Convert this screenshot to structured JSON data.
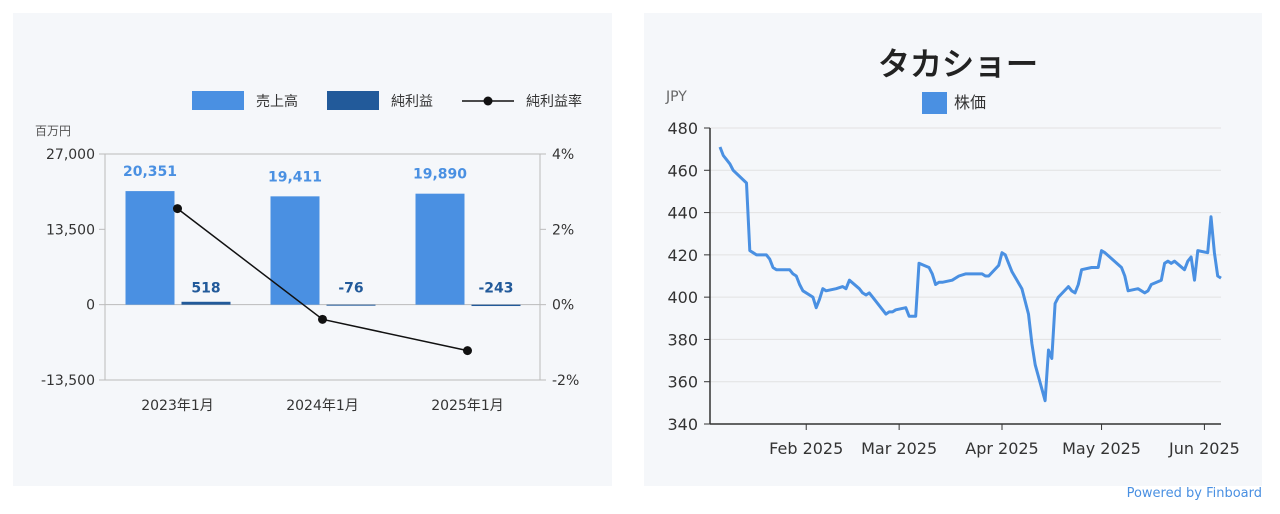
{
  "colors": {
    "revenue": "#4a90e2",
    "net_income": "#225a9a",
    "margin_line": "#111111",
    "stock_line": "#4a90e2",
    "axis": "#bbbbbb",
    "grid": "#e2e2e2"
  },
  "powered_by": "Powered by Finboard",
  "chart_data": [
    {
      "type": "bar",
      "unit_label": "百万円",
      "categories": [
        "2023年1月",
        "2024年1月",
        "2025年1月"
      ],
      "ylim": [
        -13500,
        27000
      ],
      "yticks": [
        -13500,
        0,
        13500,
        27000
      ],
      "ytick_labels": [
        "-13,500",
        "0",
        "13,500",
        "27,000"
      ],
      "y2lim": [
        -2,
        4
      ],
      "y2ticks": [
        -2,
        0,
        2,
        4
      ],
      "y2tick_labels": [
        "-2%",
        "0%",
        "2%",
        "4%"
      ],
      "legend_position": "top-right",
      "series": [
        {
          "name": "売上高",
          "kind": "bar",
          "values": [
            20351,
            19411,
            19890
          ],
          "labels": [
            "20,351",
            "19,411",
            "19,890"
          ]
        },
        {
          "name": "純利益",
          "kind": "bar",
          "values": [
            518,
            -76,
            -243
          ],
          "labels": [
            "518",
            "-76",
            "-243"
          ]
        },
        {
          "name": "純利益率",
          "kind": "line",
          "axis": "right",
          "values": [
            2.55,
            -0.39,
            -1.22
          ]
        }
      ]
    },
    {
      "type": "line",
      "title": "タカショー",
      "ylabel": "JPY",
      "ylim": [
        340,
        480
      ],
      "yticks": [
        340,
        360,
        380,
        400,
        420,
        440,
        460,
        480
      ],
      "xlim": [
        "2025-01-03",
        "2025-06-06"
      ],
      "xtick_labels": [
        "Feb 2025",
        "Mar 2025",
        "Apr 2025",
        "May 2025",
        "Jun 2025"
      ],
      "xtick_dates": [
        "2025-02-01",
        "2025-03-01",
        "2025-04-01",
        "2025-05-01",
        "2025-06-01"
      ],
      "legend_position": "top-center",
      "series": [
        {
          "name": "株価",
          "x": [
            "2025-01-06",
            "2025-01-07",
            "2025-01-08",
            "2025-01-09",
            "2025-01-10",
            "2025-01-14",
            "2025-01-15",
            "2025-01-16",
            "2025-01-17",
            "2025-01-20",
            "2025-01-21",
            "2025-01-22",
            "2025-01-23",
            "2025-01-24",
            "2025-01-27",
            "2025-01-28",
            "2025-01-29",
            "2025-01-30",
            "2025-01-31",
            "2025-02-03",
            "2025-02-04",
            "2025-02-05",
            "2025-02-06",
            "2025-02-07",
            "2025-02-10",
            "2025-02-12",
            "2025-02-13",
            "2025-02-14",
            "2025-02-17",
            "2025-02-18",
            "2025-02-19",
            "2025-02-20",
            "2025-02-21",
            "2025-02-25",
            "2025-02-26",
            "2025-02-27",
            "2025-02-28",
            "2025-03-03",
            "2025-03-04",
            "2025-03-05",
            "2025-03-06",
            "2025-03-07",
            "2025-03-10",
            "2025-03-11",
            "2025-03-12",
            "2025-03-13",
            "2025-03-14",
            "2025-03-17",
            "2025-03-18",
            "2025-03-19",
            "2025-03-21",
            "2025-03-24",
            "2025-03-25",
            "2025-03-26",
            "2025-03-27",
            "2025-03-28",
            "2025-03-31",
            "2025-04-01",
            "2025-04-02",
            "2025-04-03",
            "2025-04-04",
            "2025-04-07",
            "2025-04-08",
            "2025-04-09",
            "2025-04-10",
            "2025-04-11",
            "2025-04-14",
            "2025-04-15",
            "2025-04-16",
            "2025-04-17",
            "2025-04-18",
            "2025-04-21",
            "2025-04-22",
            "2025-04-23",
            "2025-04-24",
            "2025-04-25",
            "2025-04-28",
            "2025-04-30",
            "2025-05-01",
            "2025-05-02",
            "2025-05-07",
            "2025-05-08",
            "2025-05-09",
            "2025-05-12",
            "2025-05-13",
            "2025-05-14",
            "2025-05-15",
            "2025-05-16",
            "2025-05-19",
            "2025-05-20",
            "2025-05-21",
            "2025-05-22",
            "2025-05-23",
            "2025-05-26",
            "2025-05-27",
            "2025-05-28",
            "2025-05-29",
            "2025-05-30",
            "2025-06-02",
            "2025-06-03",
            "2025-06-04",
            "2025-06-05",
            "2025-06-06"
          ],
          "values": [
            471,
            467,
            465,
            463,
            460,
            454,
            422,
            421,
            420,
            420,
            418,
            414,
            413,
            413,
            413,
            411,
            410,
            406,
            403,
            400,
            395,
            399,
            404,
            403,
            404,
            405,
            404,
            408,
            404,
            402,
            401,
            402,
            400,
            392,
            393,
            393,
            394,
            395,
            391,
            391,
            391,
            416,
            414,
            411,
            406,
            407,
            407,
            408,
            409,
            410,
            411,
            411,
            411,
            411,
            410,
            410,
            415,
            421,
            420,
            416,
            412,
            404,
            398,
            392,
            378,
            368,
            351,
            375,
            371,
            397,
            400,
            405,
            403,
            402,
            406,
            413,
            414,
            414,
            422,
            421,
            414,
            410,
            403,
            404,
            403,
            402,
            403,
            406,
            408,
            416,
            417,
            416,
            417,
            413,
            417,
            419,
            408,
            422,
            421,
            438,
            421,
            410,
            409
          ]
        }
      ]
    }
  ]
}
